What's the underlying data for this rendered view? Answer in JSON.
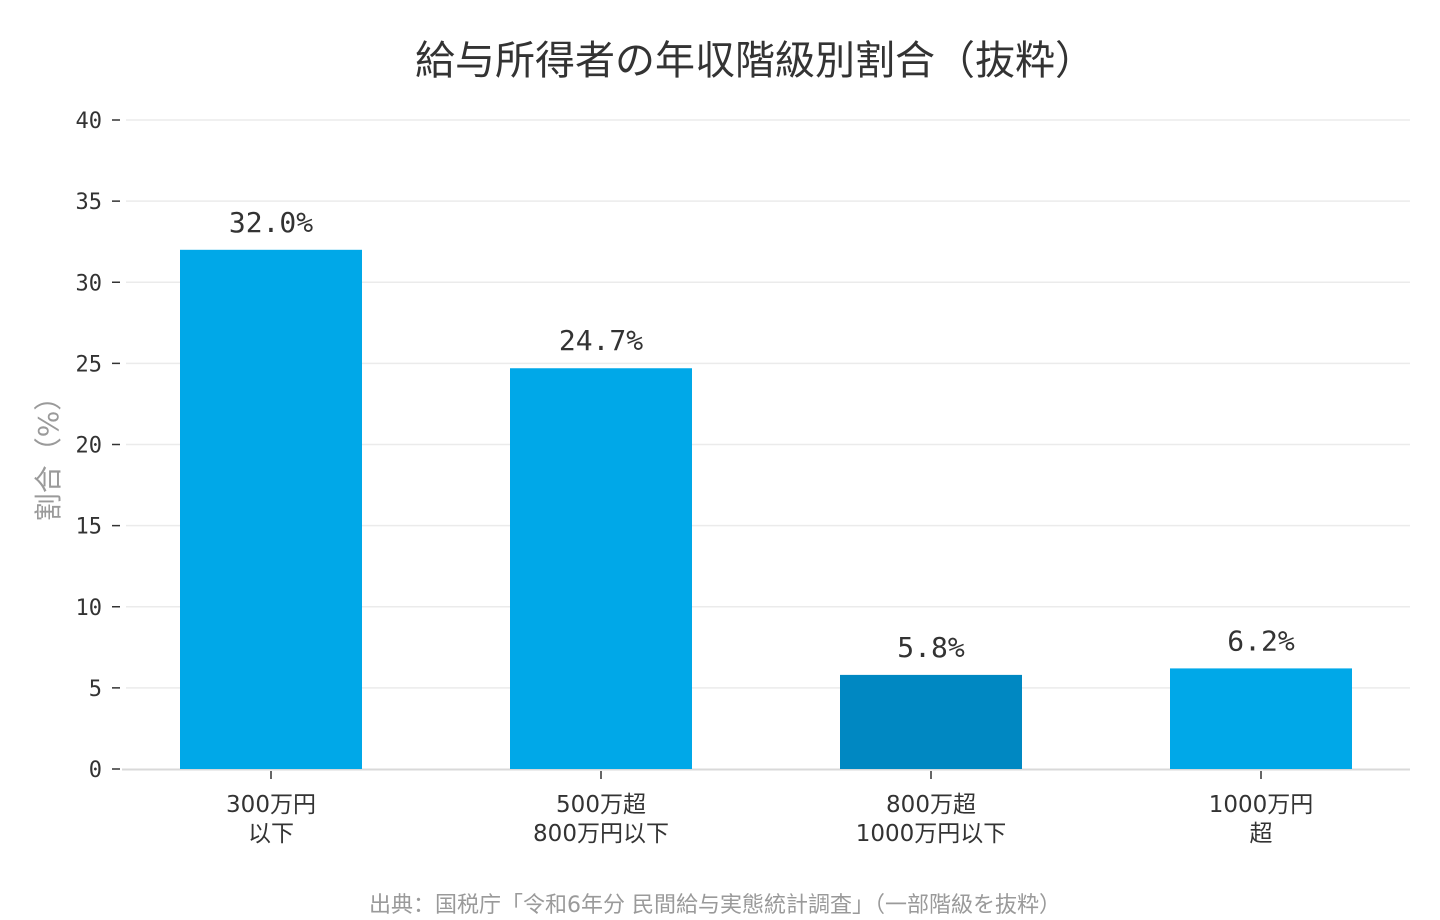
{
  "chart_data": {
    "type": "bar",
    "title": "給与所得者の年収階級別割合（抜粋）",
    "ylabel": "割合（%）",
    "xlabel": "",
    "categories": [
      [
        "300万円",
        "以下"
      ],
      [
        "500万超",
        "800万円以下"
      ],
      [
        "800万超",
        "1000万円以下"
      ],
      [
        "1000万円",
        "超"
      ]
    ],
    "values": [
      32.0,
      24.7,
      5.8,
      6.2
    ],
    "data_labels": [
      "32.0%",
      "24.7%",
      "5.8%",
      "6.2%"
    ],
    "bar_colors": [
      "#00a8e8",
      "#00a8e8",
      "#0088c2",
      "#00a8e8"
    ],
    "ylim": [
      0,
      40
    ],
    "yticks": [
      0,
      5,
      10,
      15,
      20,
      25,
      30,
      35,
      40
    ],
    "grid": true,
    "gridline_color": "#ebebeb"
  },
  "source_note": "出典：国税庁「令和6年分 民間給与実態統計調査」（一部階級を抜粋）"
}
